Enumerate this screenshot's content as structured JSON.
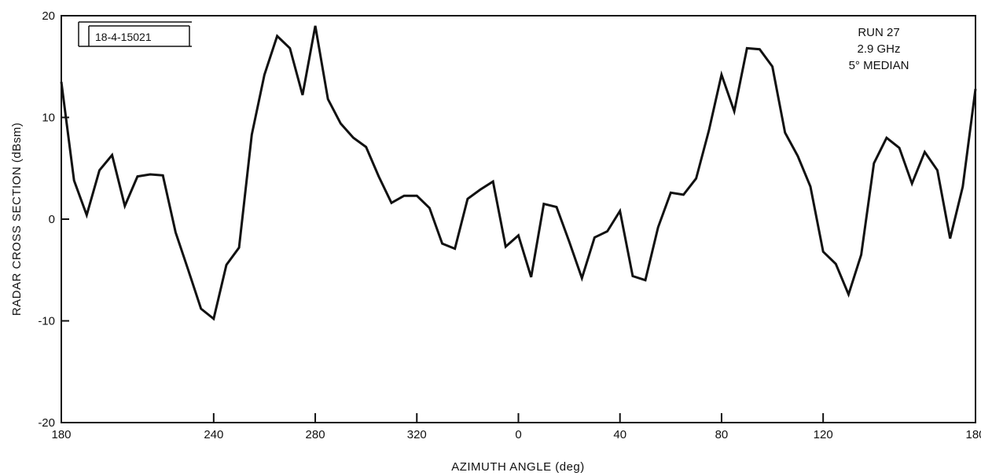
{
  "chart_data": {
    "type": "line",
    "id_label": "18-4-15021",
    "annotation_lines": [
      "RUN 27",
      "2.9 GHz",
      "5° MEDIAN"
    ],
    "xlabel": "AZIMUTH ANGLE (deg)",
    "ylabel": "RADAR CROSS SECTION (dBsm)",
    "x_ticks": [
      "180",
      "240",
      "280",
      "320",
      "0",
      "40",
      "80",
      "120",
      "180"
    ],
    "y_ticks": [
      "20",
      "10",
      "0",
      "-10",
      "-20"
    ],
    "ylim": [
      -20,
      20
    ],
    "grid": false,
    "x_unwrapped_note": "azimuth wraps at 360->0",
    "series": [
      {
        "color": "#111111",
        "x": [
          180,
          185,
          190,
          195,
          200,
          205,
          210,
          215,
          220,
          225,
          230,
          235,
          240,
          245,
          250,
          255,
          260,
          265,
          270,
          275,
          280,
          285,
          290,
          295,
          300,
          305,
          310,
          315,
          320,
          325,
          330,
          335,
          340,
          345,
          350,
          355,
          0,
          5,
          10,
          15,
          20,
          25,
          30,
          35,
          40,
          45,
          50,
          55,
          60,
          65,
          70,
          75,
          80,
          85,
          90,
          95,
          100,
          105,
          110,
          115,
          120,
          125,
          130,
          135,
          140,
          145,
          150,
          155,
          160,
          165,
          170,
          175,
          180
        ],
        "y": [
          13.5,
          3.8,
          0.4,
          4.8,
          6.3,
          1.3,
          4.2,
          4.4,
          4.3,
          -1.3,
          -5.0,
          -8.8,
          -9.8,
          -4.5,
          -2.8,
          8.3,
          14.2,
          18.0,
          16.8,
          12.2,
          19.0,
          11.8,
          9.4,
          8.0,
          7.1,
          4.2,
          1.6,
          2.3,
          2.3,
          1.1,
          -2.4,
          -2.9,
          2.0,
          2.9,
          3.7,
          -2.7,
          -1.6,
          -5.7,
          1.5,
          1.2,
          -2.2,
          -5.8,
          -1.8,
          -1.2,
          0.8,
          -5.6,
          -6.0,
          -0.8,
          2.6,
          2.4,
          4.0,
          8.7,
          14.2,
          10.6,
          16.8,
          16.7,
          15.0,
          8.5,
          6.2,
          3.2,
          -3.2,
          -4.4,
          -7.4,
          -3.5,
          5.5,
          8.0,
          7.0,
          3.5,
          6.6,
          4.8,
          -1.9,
          3.2,
          12.8
        ]
      }
    ]
  }
}
